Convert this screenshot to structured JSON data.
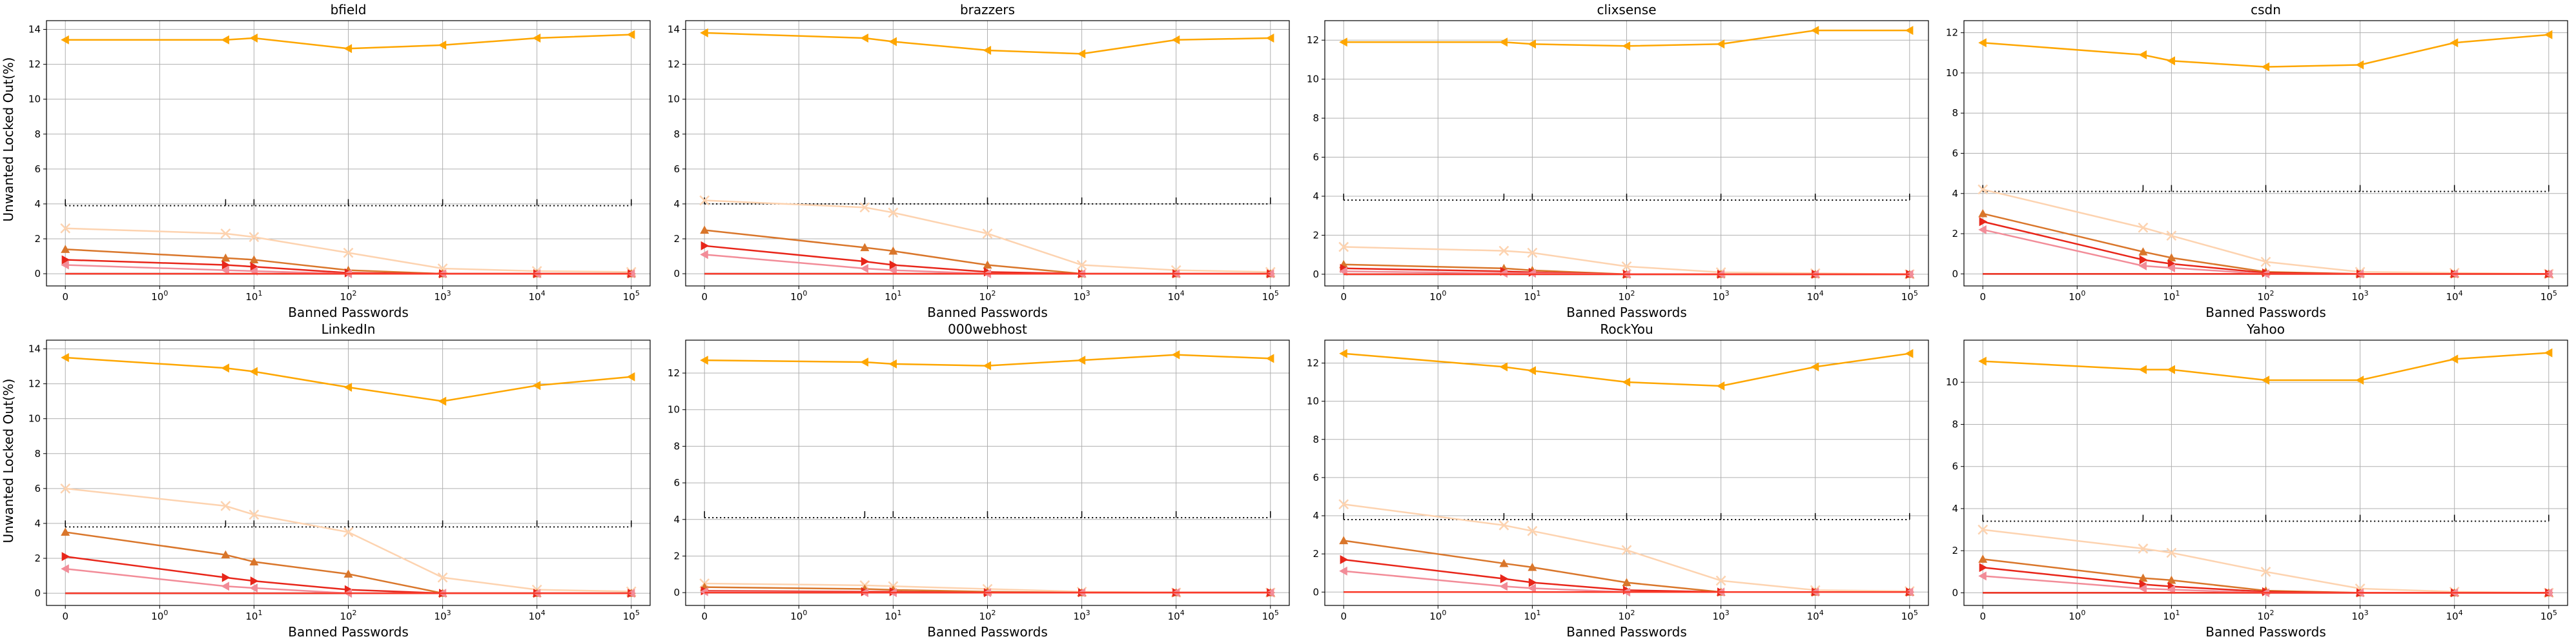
{
  "figure": {
    "ylabel": "Unwanted Locked Out(%)",
    "xlabel": "Banned Passwords",
    "x_tick_labels": [
      {
        "base": "0",
        "exp": ""
      },
      {
        "base": "10",
        "exp": "0"
      },
      {
        "base": "10",
        "exp": "1"
      },
      {
        "base": "10",
        "exp": "2"
      },
      {
        "base": "10",
        "exp": "3"
      },
      {
        "base": "10",
        "exp": "4"
      },
      {
        "base": "10",
        "exp": "5"
      }
    ]
  },
  "colors": {
    "s0": "#000000",
    "s1": "#fea600",
    "s2": "#fdd3b0",
    "s3": "#d9762b",
    "s4": "#e8261a",
    "s5": "#f28c98",
    "s6": "#fa3a2a",
    "grid": "#b0b0b0"
  },
  "chart_data": [
    {
      "type": "line",
      "title": "bfield",
      "xscale": "symlog",
      "x": [
        0,
        5,
        10,
        100,
        1000,
        10000,
        100000
      ],
      "ylim": [
        -0.7,
        14.5
      ],
      "yticks": [
        0,
        2,
        4,
        6,
        8,
        10,
        12,
        14
      ],
      "series": [
        {
          "values": [
            0,
            0,
            0,
            0,
            0,
            0,
            0
          ],
          "color": "s0"
        },
        {
          "values": [
            13.4,
            13.4,
            13.5,
            12.9,
            13.1,
            13.5,
            13.7
          ],
          "color": "s1"
        },
        {
          "values": [
            2.6,
            2.3,
            2.1,
            1.2,
            0.3,
            0.15,
            0.1
          ],
          "color": "s2"
        },
        {
          "values": [
            1.4,
            0.9,
            0.8,
            0.2,
            0,
            0,
            0
          ],
          "color": "s3"
        },
        {
          "values": [
            0.8,
            0.5,
            0.4,
            0.05,
            0,
            0,
            0
          ],
          "color": "s4"
        },
        {
          "values": [
            0.5,
            0.2,
            0.15,
            0,
            0,
            0,
            0
          ],
          "color": "s5"
        },
        {
          "values": [
            0,
            0,
            0,
            0,
            0,
            0,
            0
          ],
          "color": "s6"
        }
      ]
    },
    {
      "type": "line",
      "title": "brazzers",
      "xscale": "symlog",
      "x": [
        0,
        5,
        10,
        100,
        1000,
        10000,
        100000
      ],
      "ylim": [
        -0.7,
        14.5
      ],
      "yticks": [
        0,
        2,
        4,
        6,
        8,
        10,
        12,
        14
      ],
      "series": [
        {
          "values": [
            0,
            0,
            0,
            0,
            0,
            0,
            0
          ],
          "color": "s0"
        },
        {
          "values": [
            13.8,
            13.5,
            13.3,
            12.8,
            12.6,
            13.4,
            13.5
          ],
          "color": "s1"
        },
        {
          "values": [
            4.2,
            3.8,
            3.5,
            2.3,
            0.5,
            0.2,
            0.1
          ],
          "color": "s2"
        },
        {
          "values": [
            2.5,
            1.5,
            1.3,
            0.5,
            0,
            0,
            0
          ],
          "color": "s3"
        },
        {
          "values": [
            1.6,
            0.7,
            0.5,
            0.1,
            0,
            0,
            0
          ],
          "color": "s4"
        },
        {
          "values": [
            1.1,
            0.3,
            0.2,
            0,
            0,
            0,
            0
          ],
          "color": "s5"
        },
        {
          "values": [
            0,
            0,
            0,
            0,
            0,
            0,
            0
          ],
          "color": "s6"
        }
      ]
    },
    {
      "type": "line",
      "title": "clixsense",
      "xscale": "symlog",
      "x": [
        0,
        5,
        10,
        100,
        1000,
        10000,
        100000
      ],
      "ylim": [
        -0.6,
        13.0
      ],
      "yticks": [
        0,
        2,
        4,
        6,
        8,
        10,
        12
      ],
      "series": [
        {
          "values": [
            0,
            0,
            0,
            0,
            0,
            0,
            0
          ],
          "color": "s0"
        },
        {
          "values": [
            11.9,
            11.9,
            11.8,
            11.7,
            11.8,
            12.5,
            12.5
          ],
          "color": "s1"
        },
        {
          "values": [
            1.4,
            1.2,
            1.1,
            0.4,
            0.1,
            0.05,
            0
          ],
          "color": "s2"
        },
        {
          "values": [
            0.5,
            0.3,
            0.2,
            0,
            0,
            0,
            0
          ],
          "color": "s3"
        },
        {
          "values": [
            0.3,
            0.15,
            0.1,
            0,
            0,
            0,
            0
          ],
          "color": "s4"
        },
        {
          "values": [
            0.15,
            0.05,
            0.05,
            0,
            0,
            0,
            0
          ],
          "color": "s5"
        },
        {
          "values": [
            0,
            0,
            0,
            0,
            0,
            0,
            0
          ],
          "color": "s6"
        }
      ]
    },
    {
      "type": "line",
      "title": "csdn",
      "xscale": "symlog",
      "x": [
        0,
        5,
        10,
        100,
        1000,
        10000,
        100000
      ],
      "ylim": [
        -0.6,
        12.6
      ],
      "yticks": [
        0,
        2,
        4,
        6,
        8,
        10,
        12
      ],
      "series": [
        {
          "values": [
            0,
            0,
            0,
            0,
            0,
            0,
            0
          ],
          "color": "s0"
        },
        {
          "values": [
            11.5,
            10.9,
            10.6,
            10.3,
            10.4,
            11.5,
            11.9
          ],
          "color": "s1"
        },
        {
          "values": [
            4.2,
            2.3,
            1.9,
            0.6,
            0.1,
            0.05,
            0
          ],
          "color": "s2"
        },
        {
          "values": [
            3.0,
            1.1,
            0.8,
            0.1,
            0,
            0,
            0
          ],
          "color": "s3"
        },
        {
          "values": [
            2.6,
            0.7,
            0.5,
            0.05,
            0,
            0,
            0
          ],
          "color": "s4"
        },
        {
          "values": [
            2.2,
            0.4,
            0.3,
            0,
            0,
            0,
            0
          ],
          "color": "s5"
        },
        {
          "values": [
            0,
            0,
            0,
            0,
            0,
            0,
            0
          ],
          "color": "s6"
        }
      ]
    },
    {
      "type": "line",
      "title": "LinkedIn",
      "xscale": "symlog",
      "x": [
        0,
        5,
        10,
        100,
        1000,
        10000,
        100000
      ],
      "ylim": [
        -0.7,
        14.5
      ],
      "yticks": [
        0,
        2,
        4,
        6,
        8,
        10,
        12,
        14
      ],
      "series": [
        {
          "values": [
            0,
            0,
            0,
            0,
            0,
            0,
            0
          ],
          "color": "s0"
        },
        {
          "values": [
            13.5,
            12.9,
            12.7,
            11.8,
            11.0,
            11.9,
            12.4
          ],
          "color": "s1"
        },
        {
          "values": [
            6.0,
            5.0,
            4.5,
            3.5,
            0.9,
            0.2,
            0.1
          ],
          "color": "s2"
        },
        {
          "values": [
            3.5,
            2.2,
            1.8,
            1.1,
            0,
            0,
            0
          ],
          "color": "s3"
        },
        {
          "values": [
            2.1,
            0.9,
            0.7,
            0.2,
            0,
            0,
            0
          ],
          "color": "s4"
        },
        {
          "values": [
            1.4,
            0.4,
            0.3,
            0,
            0,
            0,
            0
          ],
          "color": "s5"
        },
        {
          "values": [
            0,
            0,
            0,
            0,
            0,
            0,
            0
          ],
          "color": "s6"
        }
      ]
    },
    {
      "type": "line",
      "title": "000webhost",
      "xscale": "symlog",
      "x": [
        0,
        5,
        10,
        100,
        1000,
        10000,
        100000
      ],
      "ylim": [
        -0.7,
        13.8
      ],
      "yticks": [
        0,
        2,
        4,
        6,
        8,
        10,
        12
      ],
      "series": [
        {
          "values": [
            0,
            0,
            0,
            0,
            0,
            0,
            0
          ],
          "color": "s0"
        },
        {
          "values": [
            12.7,
            12.6,
            12.5,
            12.4,
            12.7,
            13.0,
            12.8
          ],
          "color": "s1"
        },
        {
          "values": [
            0.5,
            0.4,
            0.35,
            0.2,
            0.05,
            0,
            0
          ],
          "color": "s2"
        },
        {
          "values": [
            0.3,
            0.2,
            0.15,
            0.05,
            0,
            0,
            0
          ],
          "color": "s3"
        },
        {
          "values": [
            0.1,
            0.05,
            0.05,
            0,
            0,
            0,
            0
          ],
          "color": "s4"
        },
        {
          "values": [
            0.05,
            0,
            0,
            0,
            0,
            0,
            0
          ],
          "color": "s5"
        },
        {
          "values": [
            0,
            0,
            0,
            0,
            0,
            0,
            0
          ],
          "color": "s6"
        }
      ]
    },
    {
      "type": "line",
      "title": "RockYou",
      "xscale": "symlog",
      "x": [
        0,
        5,
        10,
        100,
        1000,
        10000,
        100000
      ],
      "ylim": [
        -0.7,
        13.2
      ],
      "yticks": [
        0,
        2,
        4,
        6,
        8,
        10,
        12
      ],
      "series": [
        {
          "values": [
            0,
            0,
            0,
            0,
            0,
            0,
            0
          ],
          "color": "s0"
        },
        {
          "values": [
            12.5,
            11.8,
            11.6,
            11.0,
            10.8,
            11.8,
            12.5
          ],
          "color": "s1"
        },
        {
          "values": [
            4.6,
            3.5,
            3.2,
            2.2,
            0.6,
            0.1,
            0.05
          ],
          "color": "s2"
        },
        {
          "values": [
            2.7,
            1.5,
            1.3,
            0.5,
            0,
            0,
            0
          ],
          "color": "s3"
        },
        {
          "values": [
            1.7,
            0.7,
            0.5,
            0.1,
            0,
            0,
            0
          ],
          "color": "s4"
        },
        {
          "values": [
            1.1,
            0.3,
            0.2,
            0,
            0,
            0,
            0
          ],
          "color": "s5"
        },
        {
          "values": [
            0,
            0,
            0,
            0,
            0,
            0,
            0
          ],
          "color": "s6"
        }
      ]
    },
    {
      "type": "line",
      "title": "Yahoo",
      "xscale": "symlog",
      "x": [
        0,
        5,
        10,
        100,
        1000,
        10000,
        100000
      ],
      "ylim": [
        -0.6,
        12.0
      ],
      "yticks": [
        0,
        2,
        4,
        6,
        8,
        10
      ],
      "series": [
        {
          "values": [
            0,
            0,
            0,
            0,
            0,
            0,
            0
          ],
          "color": "s0"
        },
        {
          "values": [
            11.0,
            10.6,
            10.6,
            10.1,
            10.1,
            11.1,
            11.4
          ],
          "color": "s1"
        },
        {
          "values": [
            3.0,
            2.1,
            1.9,
            1.0,
            0.2,
            0.05,
            0
          ],
          "color": "s2"
        },
        {
          "values": [
            1.6,
            0.7,
            0.6,
            0.1,
            0,
            0,
            0
          ],
          "color": "s3"
        },
        {
          "values": [
            1.2,
            0.4,
            0.3,
            0.05,
            0,
            0,
            0
          ],
          "color": "s4"
        },
        {
          "values": [
            0.8,
            0.2,
            0.15,
            0,
            0,
            0,
            0
          ],
          "color": "s5"
        },
        {
          "values": [
            0,
            0,
            0,
            0,
            0,
            0,
            0
          ],
          "color": "s6"
        }
      ]
    }
  ],
  "reference_lines": [
    {
      "panel": "bfield",
      "value": 3.9
    },
    {
      "panel": "brazzers",
      "value": 4.0
    },
    {
      "panel": "clixsense",
      "value": 3.8
    },
    {
      "panel": "csdn",
      "value": 4.1
    },
    {
      "panel": "LinkedIn",
      "value": 3.8
    },
    {
      "panel": "000webhost",
      "value": 4.1
    },
    {
      "panel": "RockYou",
      "value": 3.8
    },
    {
      "panel": "Yahoo",
      "value": 3.4
    }
  ]
}
